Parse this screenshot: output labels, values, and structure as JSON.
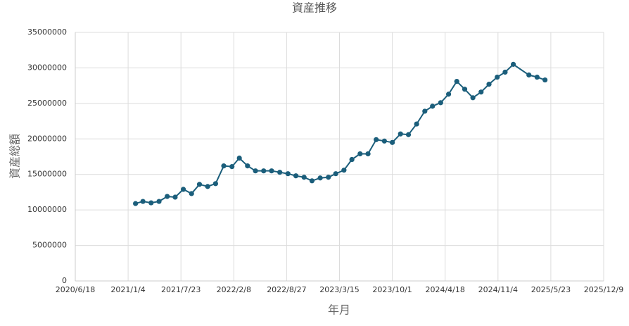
{
  "chart_data": {
    "type": "line",
    "title": "資産推移",
    "x_label": "年月",
    "y_label": "資産総額",
    "x": [
      "2021/2/1",
      "2021/3/1",
      "2021/4/1",
      "2021/5/1",
      "2021/6/1",
      "2021/7/1",
      "2021/8/1",
      "2021/9/1",
      "2021/10/1",
      "2021/11/1",
      "2021/12/1",
      "2022/1/1",
      "2022/2/1",
      "2022/3/1",
      "2022/4/1",
      "2022/5/1",
      "2022/6/1",
      "2022/7/1",
      "2022/8/1",
      "2022/9/1",
      "2022/10/1",
      "2022/11/1",
      "2022/12/1",
      "2023/1/1",
      "2023/2/1",
      "2023/3/1",
      "2023/4/1",
      "2023/5/1",
      "2023/6/1",
      "2023/7/1",
      "2023/8/1",
      "2023/9/1",
      "2023/10/1",
      "2023/11/1",
      "2023/12/1",
      "2024/1/1",
      "2024/2/1",
      "2024/3/1",
      "2024/4/1",
      "2024/5/1",
      "2024/6/1",
      "2024/7/1",
      "2024/8/1",
      "2024/9/1",
      "2024/10/1",
      "2024/11/1",
      "2024/12/1",
      "2025/1/1",
      "2025/3/1",
      "2025/4/1",
      "2025/5/1"
    ],
    "series": [
      {
        "name": "資産総額",
        "color": "#1b5e7b",
        "values": [
          10900000,
          11200000,
          11000000,
          11200000,
          11900000,
          11800000,
          12900000,
          12300000,
          13600000,
          13300000,
          13700000,
          16200000,
          16100000,
          17300000,
          16200000,
          15500000,
          15500000,
          15500000,
          15300000,
          15100000,
          14800000,
          14600000,
          14100000,
          14500000,
          14600000,
          15100000,
          15600000,
          17100000,
          17900000,
          17900000,
          19900000,
          19700000,
          19500000,
          20700000,
          20600000,
          22100000,
          23900000,
          24600000,
          25100000,
          26300000,
          28100000,
          27000000,
          25800000,
          26600000,
          27700000,
          28700000,
          29400000,
          30500000,
          29000000,
          28700000,
          28300000
        ]
      }
    ],
    "xlim": [
      "2020/6/18",
      "2025/12/9"
    ],
    "xticks": [
      "2020/6/18",
      "2021/1/4",
      "2021/7/23",
      "2022/2/8",
      "2022/8/27",
      "2023/3/15",
      "2023/10/1",
      "2024/4/18",
      "2024/11/4",
      "2025/5/23",
      "2025/12/9"
    ],
    "ylim": [
      0,
      35000000
    ],
    "yticks": [
      0,
      5000000,
      10000000,
      15000000,
      20000000,
      25000000,
      30000000,
      35000000
    ],
    "grid": true
  }
}
